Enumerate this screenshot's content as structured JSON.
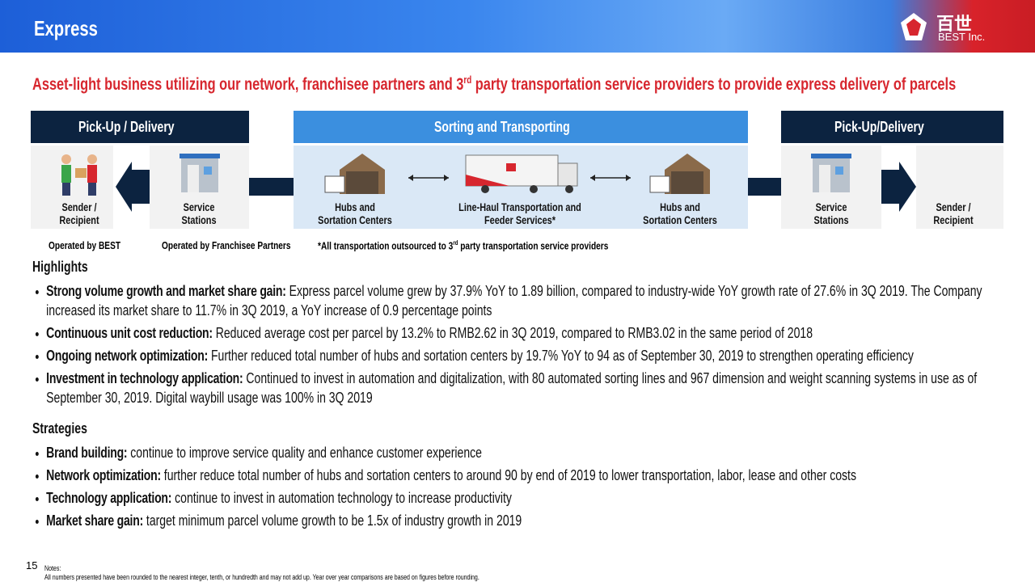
{
  "header": {
    "title": "Express",
    "logo_cn": "百世",
    "logo_en": "BEST Inc."
  },
  "subtitle": {
    "before": "Asset-light business utilizing our network, franchisee partners and 3",
    "sup": "rd",
    "after": " party transportation service providers to provide express delivery of parcels"
  },
  "diagram": {
    "headers": [
      "Pick-Up / Delivery",
      "Sorting and Transporting",
      "Pick-Up/Delivery"
    ],
    "stations": [
      {
        "line1": "Sender /",
        "line2": "Recipient"
      },
      {
        "line1": "Service",
        "line2": "Stations"
      },
      {
        "line1": "Hubs and",
        "line2": "Sortation Centers"
      },
      {
        "line1": "Line-Haul Transportation and",
        "line2": "Feeder Services*"
      },
      {
        "line1": "Hubs and",
        "line2": "Sortation Centers"
      },
      {
        "line1": "Service",
        "line2": "Stations"
      },
      {
        "line1": "Sender /",
        "line2": "Recipient"
      }
    ]
  },
  "legend": {
    "best": "Operated by BEST",
    "franchise": "Operated by Franchisee Partners",
    "note_before": "*All transportation outsourced to 3",
    "note_sup": "rd",
    "note_after": " party transportation service providers"
  },
  "highlights": {
    "title": "Highlights",
    "items": [
      {
        "lead": "Strong volume growth and market share gain:",
        "text": " Express parcel volume grew by 37.9% YoY to 1.89 billion, compared to industry-wide YoY growth rate of 27.6% in 3Q 2019. The Company increased its market share to 11.7% in 3Q 2019, a YoY increase of 0.9 percentage points"
      },
      {
        "lead": "Continuous unit cost reduction:",
        "text": " Reduced average cost per parcel by 13.2% to RMB2.62 in 3Q 2019, compared to RMB3.02 in the same period of 2018"
      },
      {
        "lead": "Ongoing network optimization:",
        "text": " Further reduced total number of hubs and sortation centers by 19.7% YoY to 94 as of September 30, 2019 to strengthen operating efficiency"
      },
      {
        "lead": "Investment in technology application:",
        "text": " Continued to invest in automation and digitalization, with 80 automated sorting lines and 967 dimension and weight scanning systems in use as of September 30, 2019. Digital waybill usage was 100% in 3Q 2019"
      }
    ]
  },
  "strategies": {
    "title": "Strategies",
    "items": [
      {
        "lead": "Brand building:",
        "text": " continue to improve service quality and enhance customer experience"
      },
      {
        "lead": "Network optimization:",
        "text": " further reduce total number of hubs and sortation centers to around 90 by end of 2019 to lower transportation, labor, lease and other costs"
      },
      {
        "lead": "Technology application:",
        "text": " continue to invest in automation technology to increase productivity"
      },
      {
        "lead": "Market share gain:",
        "text": " target minimum parcel volume growth to be 1.5x of industry growth in 2019"
      }
    ]
  },
  "footer": {
    "page": "15",
    "notes_title": "Notes:",
    "notes_text": "All numbers presented have been rounded to the nearest integer, tenth, or hundredth and may not add up. Year over year comparisons are based on figures before rounding."
  }
}
